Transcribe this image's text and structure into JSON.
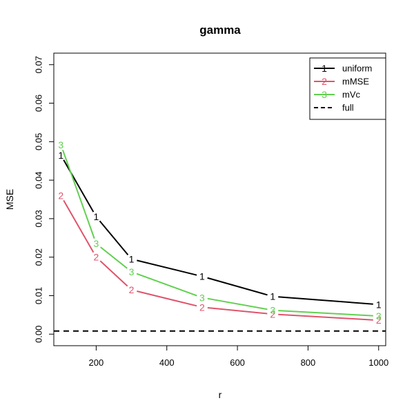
{
  "chart_data": {
    "type": "line",
    "title": "gamma",
    "xlabel": "r",
    "ylabel": "MSE",
    "xlim": [
      80,
      1020
    ],
    "ylim": [
      -0.003,
      0.073
    ],
    "x_ticks": [
      "200",
      "400",
      "600",
      "800",
      "1000"
    ],
    "x_tick_values": [
      200,
      400,
      600,
      800,
      1000
    ],
    "y_ticks": [
      "0.00",
      "0.01",
      "0.02",
      "0.03",
      "0.04",
      "0.05",
      "0.06",
      "0.07"
    ],
    "y_tick_values": [
      0.0,
      0.01,
      0.02,
      0.03,
      0.04,
      0.05,
      0.06,
      0.07
    ],
    "x": [
      100,
      200,
      300,
      500,
      700,
      1000
    ],
    "series": [
      {
        "name": "uniform",
        "marker": "1",
        "color": "#000000",
        "values": [
          0.0465,
          0.0305,
          0.0195,
          0.015,
          0.0098,
          0.0077
        ]
      },
      {
        "name": "mMSE",
        "marker": "2",
        "color": "#DF536B",
        "values": [
          0.036,
          0.02,
          0.0115,
          0.007,
          0.0052,
          0.0036
        ]
      },
      {
        "name": "mVc",
        "marker": "3",
        "color": "#61D04F",
        "values": [
          0.0492,
          0.0235,
          0.0162,
          0.0095,
          0.0062,
          0.0047
        ]
      }
    ],
    "reference": {
      "name": "full",
      "value": 0.0008,
      "color": "#000000",
      "style": "dashed"
    },
    "legend": {
      "position": "top-right",
      "entries": [
        {
          "label": "uniform",
          "marker": "1",
          "color": "#000000",
          "style": "solid"
        },
        {
          "label": "mMSE",
          "marker": "2",
          "color": "#DF536B",
          "style": "solid"
        },
        {
          "label": "mVc",
          "marker": "3",
          "color": "#61D04F",
          "style": "solid"
        },
        {
          "label": "full",
          "marker": "",
          "color": "#000000",
          "style": "dashed"
        }
      ]
    },
    "grid": false
  }
}
